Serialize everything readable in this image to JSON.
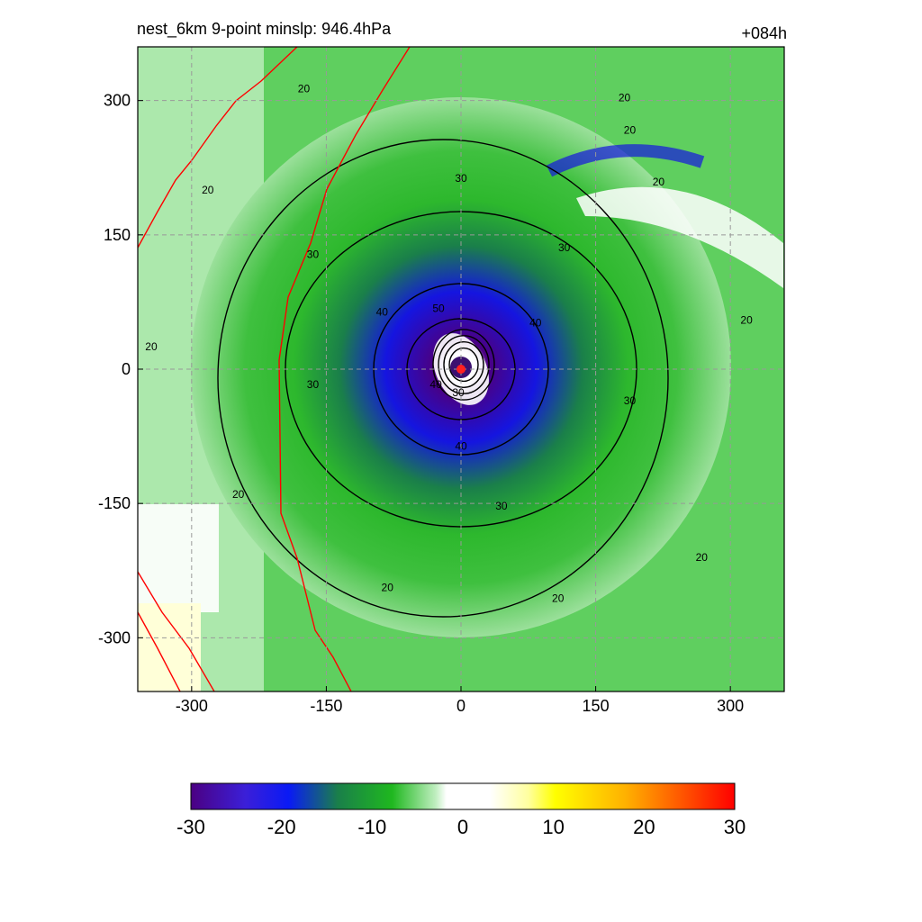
{
  "title": {
    "left": "nest_6km  9-point minslp: 946.4hPa",
    "right": "+084h"
  },
  "chart_data": {
    "type": "heatmap",
    "x_ticks": [
      "-300",
      "-150",
      "0",
      "150",
      "300"
    ],
    "y_ticks": [
      "300",
      "150",
      "0",
      "-150",
      "-300"
    ],
    "xlim": [
      -360,
      360
    ],
    "ylim": [
      -360,
      360
    ],
    "grid": true,
    "storm_center": {
      "x": 0,
      "y": 0
    },
    "contour_levels": [
      20,
      30,
      40,
      50
    ],
    "contour_labels": [
      {
        "text": "20",
        "x": -175,
        "y": 313
      },
      {
        "text": "20",
        "x": -282,
        "y": 200
      },
      {
        "text": "20",
        "x": -345,
        "y": 25
      },
      {
        "text": "20",
        "x": -248,
        "y": -140
      },
      {
        "text": "20",
        "x": -82,
        "y": -244
      },
      {
        "text": "20",
        "x": 108,
        "y": -256
      },
      {
        "text": "20",
        "x": 268,
        "y": -210
      },
      {
        "text": "20",
        "x": 188,
        "y": 267
      },
      {
        "text": "20",
        "x": 220,
        "y": 209
      },
      {
        "text": "20",
        "x": 182,
        "y": 303
      },
      {
        "text": "20",
        "x": 318,
        "y": 55
      },
      {
        "text": "30",
        "x": 0,
        "y": 213
      },
      {
        "text": "30",
        "x": 115,
        "y": 136
      },
      {
        "text": "30",
        "x": 188,
        "y": -35
      },
      {
        "text": "30",
        "x": 45,
        "y": -153
      },
      {
        "text": "30",
        "x": -165,
        "y": -17
      },
      {
        "text": "30",
        "x": -165,
        "y": 128
      },
      {
        "text": "30",
        "x": -3,
        "y": -26
      },
      {
        "text": "40",
        "x": 83,
        "y": 52
      },
      {
        "text": "40",
        "x": -88,
        "y": 64
      },
      {
        "text": "40",
        "x": -28,
        "y": -17
      },
      {
        "text": "40",
        "x": 0,
        "y": -86
      },
      {
        "text": "50",
        "x": -25,
        "y": 68
      }
    ],
    "colorbar": {
      "ticks": [
        "-30",
        "-20",
        "-10",
        "0",
        "10",
        "20",
        "30"
      ],
      "range": [
        -30,
        30
      ],
      "colors": [
        "#4b0082",
        "#2222ee",
        "#1a7f4a",
        "#2db82d",
        "#ffffff",
        "#ffff00",
        "#ff0000"
      ]
    }
  }
}
